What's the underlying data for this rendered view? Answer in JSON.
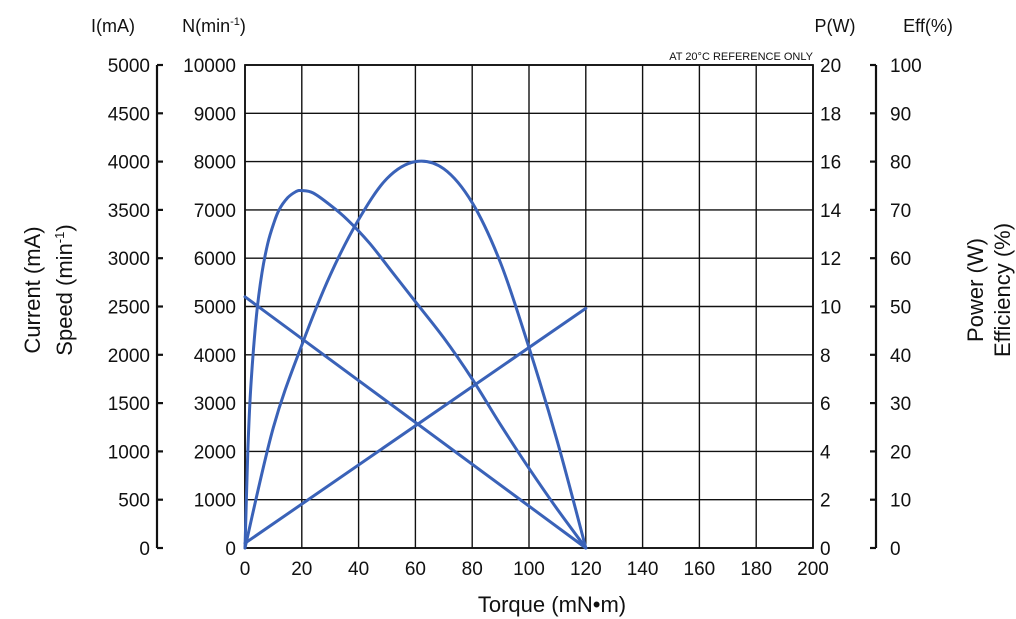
{
  "chart_data": {
    "type": "line",
    "note": "AT 20°C REFERENCE ONLY",
    "x_axis": {
      "label": "Torque (mN•m)",
      "range": [
        0,
        200
      ],
      "ticks": [
        "0",
        "20",
        "40",
        "60",
        "80",
        "100",
        "120",
        "140",
        "160",
        "180",
        "200"
      ]
    },
    "left_axes": [
      {
        "header": "I(mA)",
        "label": "Current (mA)",
        "range": [
          0,
          5000
        ],
        "ticks": [
          "0",
          "500",
          "1000",
          "1500",
          "2000",
          "2500",
          "3000",
          "3500",
          "4000",
          "4500",
          "5000"
        ]
      },
      {
        "header": "N(min",
        "header_sup": "-1",
        "header_close": ")",
        "label": "Speed (min",
        "label_sup": "-1",
        "label_close": ")",
        "range": [
          0,
          10000
        ],
        "ticks": [
          "0",
          "1000",
          "2000",
          "3000",
          "4000",
          "5000",
          "6000",
          "7000",
          "8000",
          "9000",
          "10000"
        ]
      }
    ],
    "right_axes": [
      {
        "header": "P(W)",
        "label": "Power (W)",
        "range": [
          0,
          20
        ],
        "ticks": [
          "0",
          "2",
          "4",
          "6",
          "8",
          "10",
          "12",
          "14",
          "16",
          "18",
          "20"
        ]
      },
      {
        "header": "Eff(%)",
        "label": "Efficiency (%)",
        "range": [
          0,
          100
        ],
        "ticks": [
          "0",
          "10",
          "20",
          "30",
          "40",
          "50",
          "60",
          "70",
          "80",
          "90",
          "100"
        ]
      }
    ],
    "series": [
      {
        "axis": "speed",
        "x": [
          0,
          120
        ],
        "y": [
          5200,
          0
        ]
      },
      {
        "axis": "current",
        "x": [
          0,
          120
        ],
        "y": [
          50,
          2480
        ]
      },
      {
        "axis": "power",
        "x": [
          0,
          10,
          20,
          30,
          40,
          50,
          60,
          70,
          80,
          90,
          100,
          110,
          120
        ],
        "y": [
          0,
          5.0,
          8.4,
          11.3,
          13.6,
          15.3,
          16.0,
          15.7,
          14.3,
          11.8,
          8.3,
          4.4,
          0
        ]
      },
      {
        "axis": "efficiency",
        "x": [
          0,
          1,
          2,
          4,
          6,
          8,
          10,
          12,
          15,
          18,
          20,
          24,
          30,
          36,
          44,
          52,
          60,
          70,
          80,
          90,
          100,
          110,
          120
        ],
        "y": [
          0,
          20,
          33,
          48,
          57,
          63,
          67,
          70,
          72.5,
          73.8,
          74,
          73.5,
          71,
          68,
          63,
          57,
          51,
          43.5,
          35,
          25.5,
          16.5,
          8,
          0
        ]
      }
    ]
  }
}
